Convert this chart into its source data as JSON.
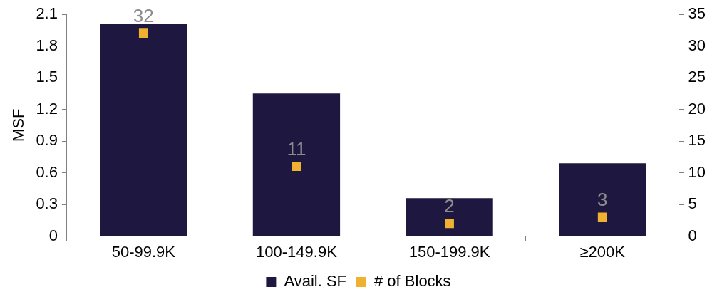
{
  "chart_data": {
    "type": "bar",
    "ylabel": "MSF",
    "categories": [
      "50-99.9K",
      "100-149.9K",
      "150-199.9K",
      "≥200K"
    ],
    "series": [
      {
        "name": "Avail. SF",
        "color": "#1e1840",
        "values": [
          2.01,
          1.35,
          0.36,
          0.69
        ]
      },
      {
        "name": "# of Blocks",
        "type": "scatter",
        "axis": "y2",
        "color": "#f0b030",
        "marker": "square",
        "values": [
          32,
          11,
          2,
          3
        ],
        "value_labels": [
          "32",
          "11",
          "2",
          "3"
        ]
      }
    ],
    "ylim": [
      0,
      2.1
    ],
    "yticks": [
      0,
      0.3,
      0.6,
      0.9,
      1.2,
      1.5,
      1.8,
      2.1
    ],
    "y2lim": [
      0,
      35
    ],
    "y2ticks": [
      0,
      5,
      10,
      15,
      20,
      25,
      30,
      35
    ],
    "grid": false,
    "legend": "bottom"
  }
}
